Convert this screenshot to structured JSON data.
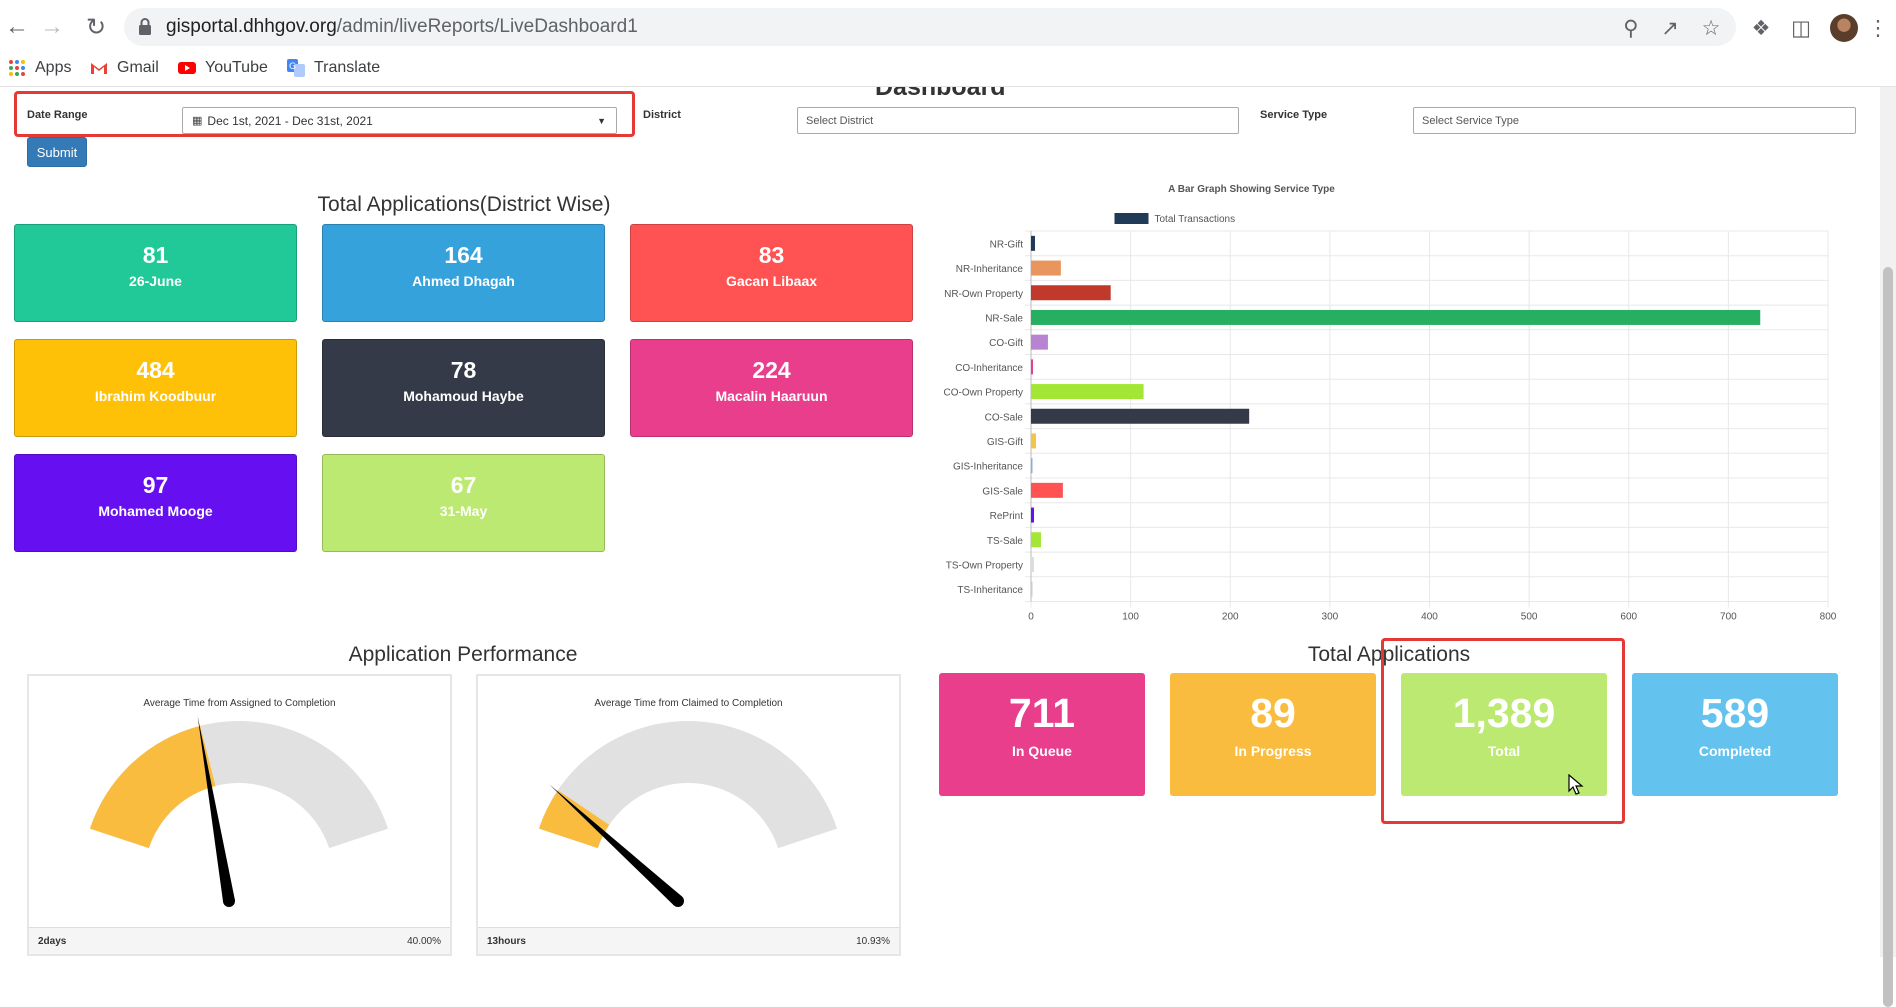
{
  "browser": {
    "url_host": "gisportal.dhhgov.org",
    "url_path": "/admin/liveReports/LiveDashboard1",
    "bookmarks": [
      {
        "label": "Apps",
        "icon": "apps-grid-icon"
      },
      {
        "label": "Gmail",
        "icon": "gmail-icon"
      },
      {
        "label": "YouTube",
        "icon": "youtube-icon"
      },
      {
        "label": "Translate",
        "icon": "translate-icon"
      }
    ]
  },
  "page": {
    "title": "Dashboard"
  },
  "filters": {
    "date_range_label": "Date Range",
    "date_range_value": "Dec 1st, 2021 - Dec 31st, 2021",
    "district_label": "District",
    "district_placeholder": "Select District",
    "service_type_label": "Service Type",
    "service_type_placeholder": "Select Service Type",
    "submit_label": "Submit"
  },
  "district_section": {
    "title": "Total Applications(District Wise)",
    "cards": [
      {
        "value": "81",
        "name": "26-June",
        "color": "#20c997"
      },
      {
        "value": "164",
        "name": "Ahmed Dhagah",
        "color": "#36a2dc"
      },
      {
        "value": "83",
        "name": "Gacan Libaax",
        "color": "#ff5252"
      },
      {
        "value": "484",
        "name": "Ibrahim Koodbuur",
        "color": "#ffc107"
      },
      {
        "value": "78",
        "name": "Mohamoud Haybe",
        "color": "#343a48"
      },
      {
        "value": "224",
        "name": "Macalin Haaruun",
        "color": "#e83e8c"
      },
      {
        "value": "97",
        "name": "Mohamed Mooge",
        "color": "#6610f2"
      },
      {
        "value": "67",
        "name": "31-May",
        "color": "#bce971"
      }
    ]
  },
  "chart_data": {
    "type": "bar",
    "orientation": "horizontal",
    "title": "A Bar Graph Showing Service Type",
    "legend": "Total Transactions",
    "legend_placement": "top",
    "categories": [
      "NR-Gift",
      "NR-Inheritance",
      "NR-Own Property",
      "NR-Sale",
      "CO-Gift",
      "CO-Inheritance",
      "CO-Own Property",
      "CO-Sale",
      "GIS-Gift",
      "GIS-Inheritance",
      "GIS-Sale",
      "RePrint",
      "TS-Sale",
      "TS-Own Property",
      "TS-Inheritance"
    ],
    "values": [
      4,
      30,
      80,
      732,
      17,
      2,
      113,
      219,
      5,
      1,
      32,
      3,
      10,
      3,
      1
    ],
    "colors": [
      "#1f3b57",
      "#e8965d",
      "#c0392b",
      "#27ae60",
      "#b784d1",
      "#e83e8c",
      "#a3e635",
      "#343a48",
      "#f4c542",
      "#7fb3e6",
      "#ff5252",
      "#6610f2",
      "#a3e635",
      "#dddddd",
      "#cccccc"
    ],
    "xlim": [
      0,
      800
    ],
    "xticks": [
      0,
      100,
      200,
      300,
      400,
      500,
      600,
      700,
      800
    ],
    "grid": true
  },
  "performance": {
    "title": "Application Performance",
    "gauges": [
      {
        "title": "Average Time from Assigned to Completion",
        "footer_left": "2days",
        "footer_right": "40.00%",
        "fraction": 0.4
      },
      {
        "title": "Average Time from Claimed to Completion",
        "footer_left": "13hours",
        "footer_right": "10.93%",
        "fraction": 0.1093
      }
    ],
    "fill_color": "#f9bc3f",
    "track_color": "#e1e1e1"
  },
  "totals": {
    "title": "Total Applications",
    "stats": [
      {
        "value": "711",
        "label": "In Queue",
        "color": "#e83e8c"
      },
      {
        "value": "89",
        "label": "In Progress",
        "color": "#f9bc3f"
      },
      {
        "value": "1,389",
        "label": "Total",
        "color": "#bce971"
      },
      {
        "value": "589",
        "label": "Completed",
        "color": "#63c2ee"
      }
    ]
  }
}
